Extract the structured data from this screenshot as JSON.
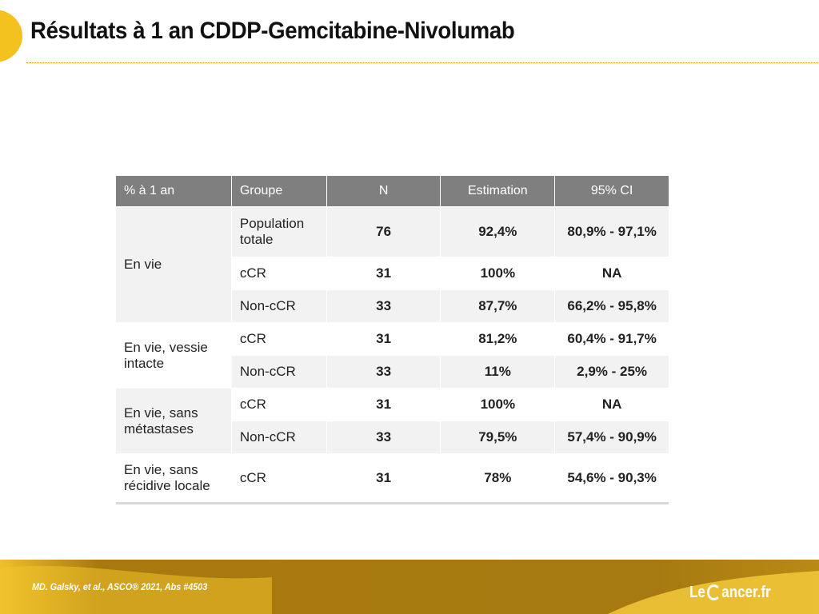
{
  "slide": {
    "title": "Résultats à 1 an CDDP-Gemcitabine-Nivolumab"
  },
  "table": {
    "headers": [
      "% à 1 an",
      "Groupe",
      "N",
      "Estimation",
      "95% CI"
    ],
    "categories": {
      "en_vie": "En vie",
      "vessie": "En vie, vessie intacte",
      "metastases": "En vie, sans métastases",
      "recidive": "En vie, sans récidive locale"
    },
    "rows": [
      {
        "groupe": "Population totale",
        "n": "76",
        "estimation": "92,4%",
        "ci": "80,9% - 97,1%"
      },
      {
        "groupe": "cCR",
        "n": "31",
        "estimation": "100%",
        "ci": "NA"
      },
      {
        "groupe": "Non-cCR",
        "n": "33",
        "estimation": "87,7%",
        "ci": "66,2% - 95,8%"
      },
      {
        "groupe": "cCR",
        "n": "31",
        "estimation": "81,2%",
        "ci": "60,4% - 91,7%"
      },
      {
        "groupe": "Non-cCR",
        "n": "33",
        "estimation": "11%",
        "ci": "2,9% - 25%"
      },
      {
        "groupe": "cCR",
        "n": "31",
        "estimation": "100%",
        "ci": "NA"
      },
      {
        "groupe": "Non-cCR",
        "n": "33",
        "estimation": "79,5%",
        "ci": "57,4% - 90,9%"
      },
      {
        "groupe": "cCR",
        "n": "31",
        "estimation": "78%",
        "ci": "54,6% - 90,3%"
      }
    ]
  },
  "footer": {
    "citation": "MD. Galsky, et al.,  ASCO® 2021, Abs #4503",
    "logo_prefix": "Le",
    "logo_suffix": "ancer.fr"
  },
  "colors": {
    "accent_yellow": "#f3c21e",
    "footer_brown": "#a8790e",
    "header_gray": "#7f7f7f",
    "row_shade": "#f2f2f2"
  }
}
